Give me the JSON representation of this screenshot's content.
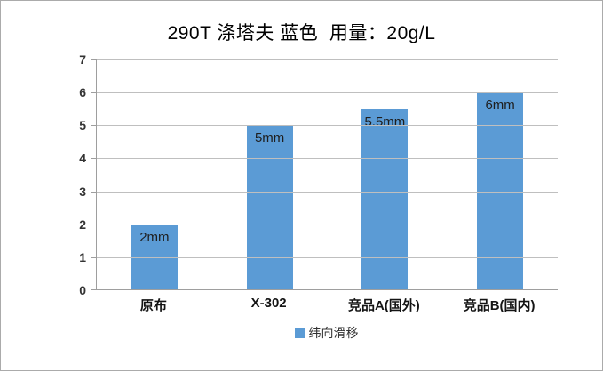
{
  "chart_data": {
    "type": "bar",
    "title": "290T 涤塔夫 蓝色  用量：20g/L",
    "categories": [
      "原布",
      "X-302",
      "竞品A(国外)",
      "竞品B(国内)"
    ],
    "series": [
      {
        "name": "纬向滑移",
        "values": [
          2,
          5,
          5.5,
          6
        ]
      }
    ],
    "data_labels": [
      "2mm",
      "5mm",
      "5.5mm",
      "6mm"
    ],
    "xlabel": "",
    "ylabel": "",
    "ylim": [
      0,
      7
    ],
    "yticks": [
      0,
      1,
      2,
      3,
      4,
      5,
      6,
      7
    ],
    "grid": true,
    "legend": {
      "label": "纬向滑移",
      "position": "bottom"
    },
    "colors": {
      "bar": "#5B9BD5",
      "gridline": "#BFBFBF",
      "axis_line": "#9E9E9E",
      "tick_text": "#333333",
      "label_text": "#1E1E1E"
    }
  }
}
